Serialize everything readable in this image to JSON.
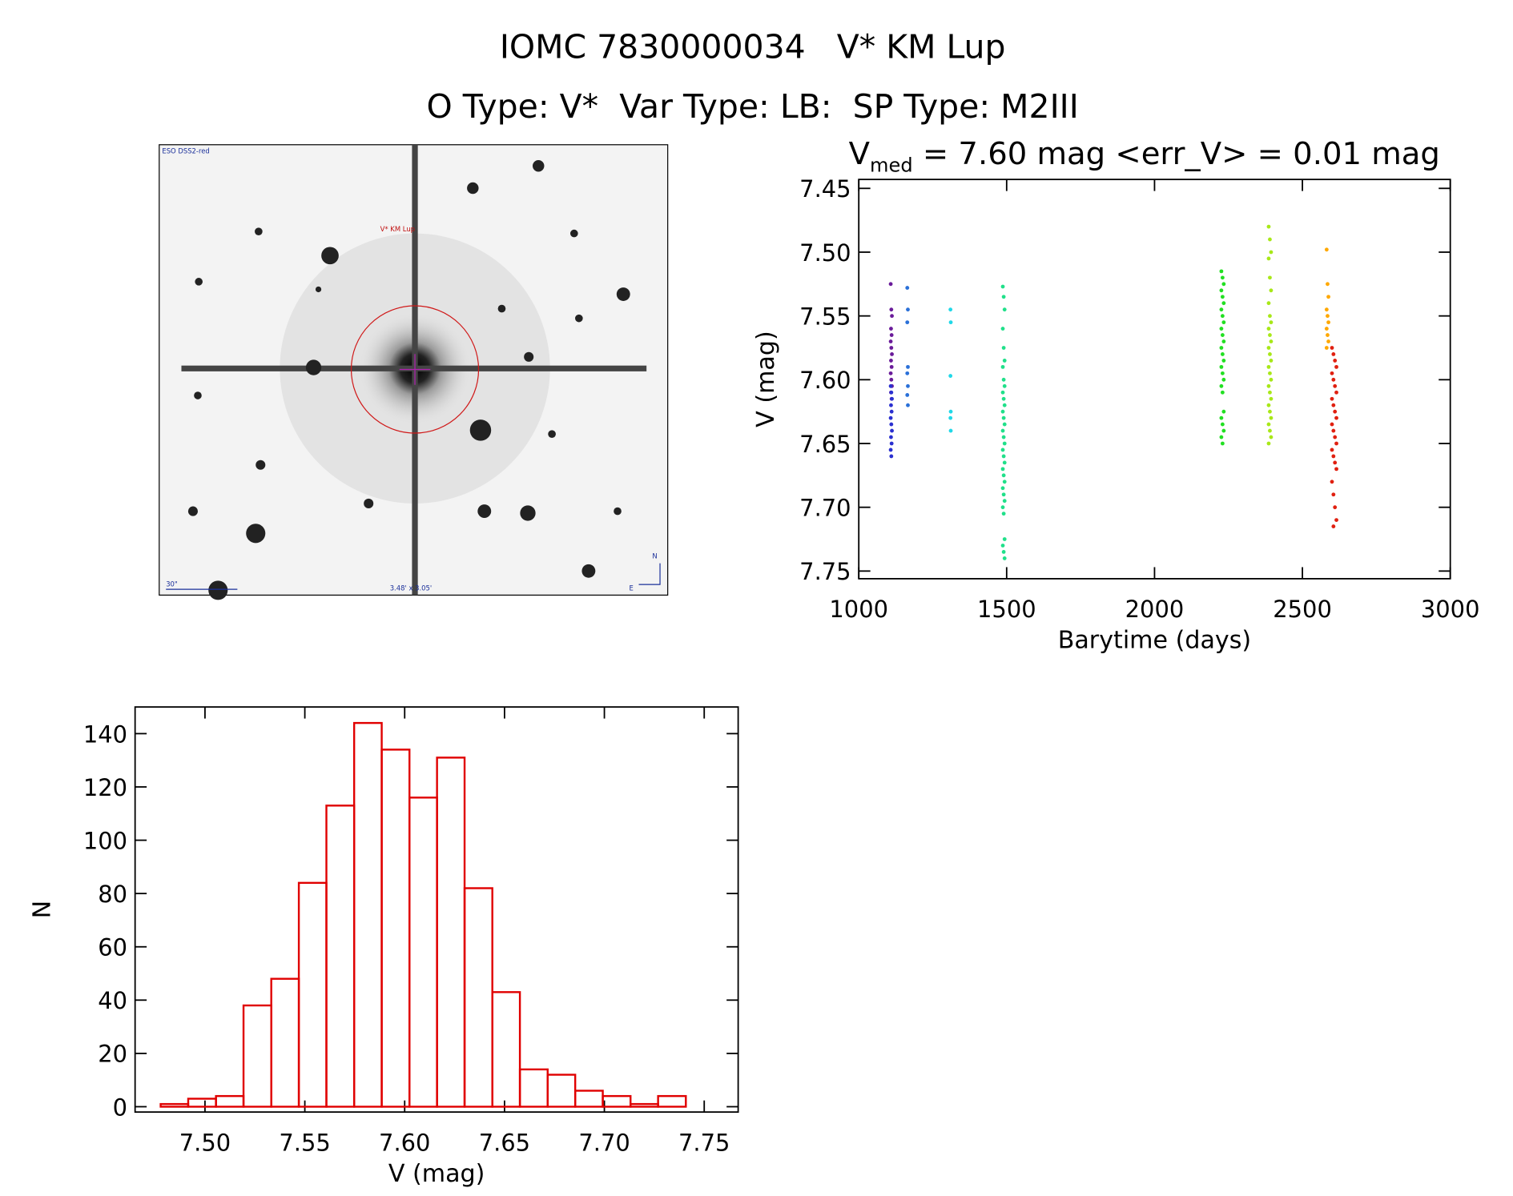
{
  "header": {
    "title": "IOMC 7830000034   V* KM Lup",
    "subtitle": "O Type: V*  Var Type: LB:  SP Type: M2III"
  },
  "image": {
    "labels": [
      "ESO DSS2-red",
      "V* KM Lup",
      "30\"",
      "3.48' x 3.05'",
      "N",
      "E"
    ]
  },
  "chart_data": [
    {
      "type": "scatter",
      "title": {
        "main": "V",
        "subscript": "med",
        "rest": " = 7.60 mag <err_V> = 0.01 mag"
      },
      "x_label": "Barytime (days)",
      "y_label": "V (mag)",
      "xlim": [
        1000,
        3000
      ],
      "xticks": [
        1000,
        1500,
        2000,
        2500,
        3000
      ],
      "ylim": [
        7.756,
        7.443
      ],
      "yticks": [
        7.45,
        {
          "value": 7.5,
          "label": "7.50"
        },
        7.55,
        {
          "value": 7.6,
          "label": "7.60"
        },
        7.65,
        {
          "value": 7.7,
          "label": "7.70"
        },
        7.75
      ],
      "series": [
        {
          "color": "#6a1b9a",
          "x": [
            1108,
            1110,
            1112,
            1109,
            1111,
            1108,
            1110,
            1112,
            1109,
            1111,
            1108,
            1110,
            1112,
            1109,
            1111
          ],
          "y": [
            7.525,
            7.545,
            7.55,
            7.56,
            7.565,
            7.57,
            7.575,
            7.58,
            7.585,
            7.59,
            7.595,
            7.6,
            7.605,
            7.61,
            7.615
          ]
        },
        {
          "color": "#2a30d0",
          "x": [
            1108,
            1110,
            1112,
            1109,
            1111,
            1108,
            1110,
            1112,
            1109,
            1111,
            1108,
            1110
          ],
          "y": [
            7.605,
            7.61,
            7.615,
            7.62,
            7.625,
            7.63,
            7.635,
            7.64,
            7.645,
            7.65,
            7.655,
            7.66
          ]
        },
        {
          "color": "#2a70d8",
          "x": [
            1164,
            1166,
            1164,
            1166,
            1164,
            1166,
            1164,
            1166
          ],
          "y": [
            7.528,
            7.545,
            7.555,
            7.59,
            7.595,
            7.605,
            7.612,
            7.62
          ]
        },
        {
          "color": "#20d8e8",
          "x": [
            1310,
            1311,
            1310,
            1311,
            1310,
            1311
          ],
          "y": [
            7.545,
            7.555,
            7.597,
            7.625,
            7.63,
            7.64
          ]
        },
        {
          "color": "#20e08a",
          "x": [
            1487,
            1490,
            1493,
            1487,
            1490,
            1493,
            1487,
            1490,
            1493,
            1487,
            1490,
            1493,
            1487,
            1490,
            1493,
            1487,
            1490,
            1493,
            1487,
            1490,
            1493,
            1487,
            1490,
            1493,
            1487,
            1490,
            1493,
            1487,
            1490,
            1493,
            1487,
            1490,
            1493
          ],
          "y": [
            7.527,
            7.535,
            7.545,
            7.56,
            7.575,
            7.585,
            7.59,
            7.6,
            7.605,
            7.61,
            7.615,
            7.62,
            7.625,
            7.63,
            7.635,
            7.64,
            7.645,
            7.65,
            7.655,
            7.66,
            7.665,
            7.67,
            7.675,
            7.68,
            7.685,
            7.69,
            7.695,
            7.7,
            7.705,
            7.725,
            7.73,
            7.735,
            7.74
          ]
        },
        {
          "color": "#22e022",
          "x": [
            2226,
            2230,
            2234,
            2226,
            2230,
            2234,
            2226,
            2230,
            2234,
            2226,
            2230,
            2234,
            2226,
            2230,
            2234,
            2226,
            2230,
            2234,
            2226,
            2230,
            2234,
            2226,
            2230,
            2234,
            2226,
            2230
          ],
          "y": [
            7.515,
            7.52,
            7.525,
            7.53,
            7.535,
            7.54,
            7.545,
            7.55,
            7.555,
            7.56,
            7.565,
            7.57,
            7.575,
            7.58,
            7.585,
            7.59,
            7.595,
            7.6,
            7.605,
            7.61,
            7.625,
            7.63,
            7.635,
            7.64,
            7.645,
            7.65
          ]
        },
        {
          "color": "#a8e818",
          "x": [
            2386,
            2390,
            2394,
            2386,
            2390,
            2394,
            2386,
            2390,
            2394,
            2386,
            2390,
            2394,
            2386,
            2390,
            2394,
            2386,
            2390,
            2394,
            2386,
            2390,
            2394,
            2386,
            2390,
            2394,
            2386,
            2390,
            2394,
            2386
          ],
          "y": [
            7.48,
            7.49,
            7.5,
            7.505,
            7.52,
            7.53,
            7.54,
            7.55,
            7.555,
            7.56,
            7.565,
            7.57,
            7.575,
            7.58,
            7.585,
            7.59,
            7.595,
            7.6,
            7.605,
            7.61,
            7.615,
            7.62,
            7.625,
            7.63,
            7.635,
            7.64,
            7.645,
            7.65
          ]
        },
        {
          "color": "#ffa800",
          "x": [
            2582,
            2585,
            2588,
            2582,
            2585,
            2588,
            2582,
            2585,
            2588,
            2582
          ],
          "y": [
            7.498,
            7.525,
            7.535,
            7.545,
            7.55,
            7.555,
            7.56,
            7.565,
            7.57,
            7.575
          ]
        },
        {
          "color": "#e02010",
          "x": [
            2600,
            2605,
            2610,
            2615,
            2600,
            2605,
            2610,
            2615,
            2600,
            2605,
            2610,
            2615,
            2600,
            2605,
            2610,
            2615,
            2600,
            2605,
            2610,
            2615,
            2600,
            2605,
            2610,
            2615,
            2605
          ],
          "y": [
            7.575,
            7.58,
            7.585,
            7.59,
            7.595,
            7.6,
            7.605,
            7.61,
            7.615,
            7.62,
            7.625,
            7.63,
            7.635,
            7.64,
            7.645,
            7.65,
            7.655,
            7.66,
            7.665,
            7.67,
            7.68,
            7.69,
            7.7,
            7.71,
            7.715
          ]
        }
      ]
    },
    {
      "type": "histogram",
      "x_label": "V (mag)",
      "y_label": "N",
      "color": "#e00000",
      "bins": [
        7.4778,
        7.4916,
        7.5055,
        7.5193,
        7.5332,
        7.547,
        7.5608,
        7.5747,
        7.5885,
        7.6024,
        7.6162,
        7.63,
        7.6439,
        7.6577,
        7.6716,
        7.6854,
        7.6992,
        7.7131,
        7.7269,
        7.7408
      ],
      "values": [
        1,
        3,
        4,
        38,
        48,
        84,
        113,
        144,
        134,
        116,
        131,
        82,
        43,
        14,
        12,
        6,
        4,
        1,
        4
      ],
      "xlim": [
        7.465,
        7.767
      ],
      "xticks": [
        {
          "value": 7.5,
          "label": "7.50"
        },
        7.55,
        {
          "value": 7.6,
          "label": "7.60"
        },
        7.65,
        {
          "value": 7.7,
          "label": "7.70"
        },
        7.75
      ],
      "ylim": [
        -2,
        150
      ],
      "yticks": [
        0,
        20,
        40,
        60,
        80,
        100,
        120,
        140
      ]
    }
  ]
}
